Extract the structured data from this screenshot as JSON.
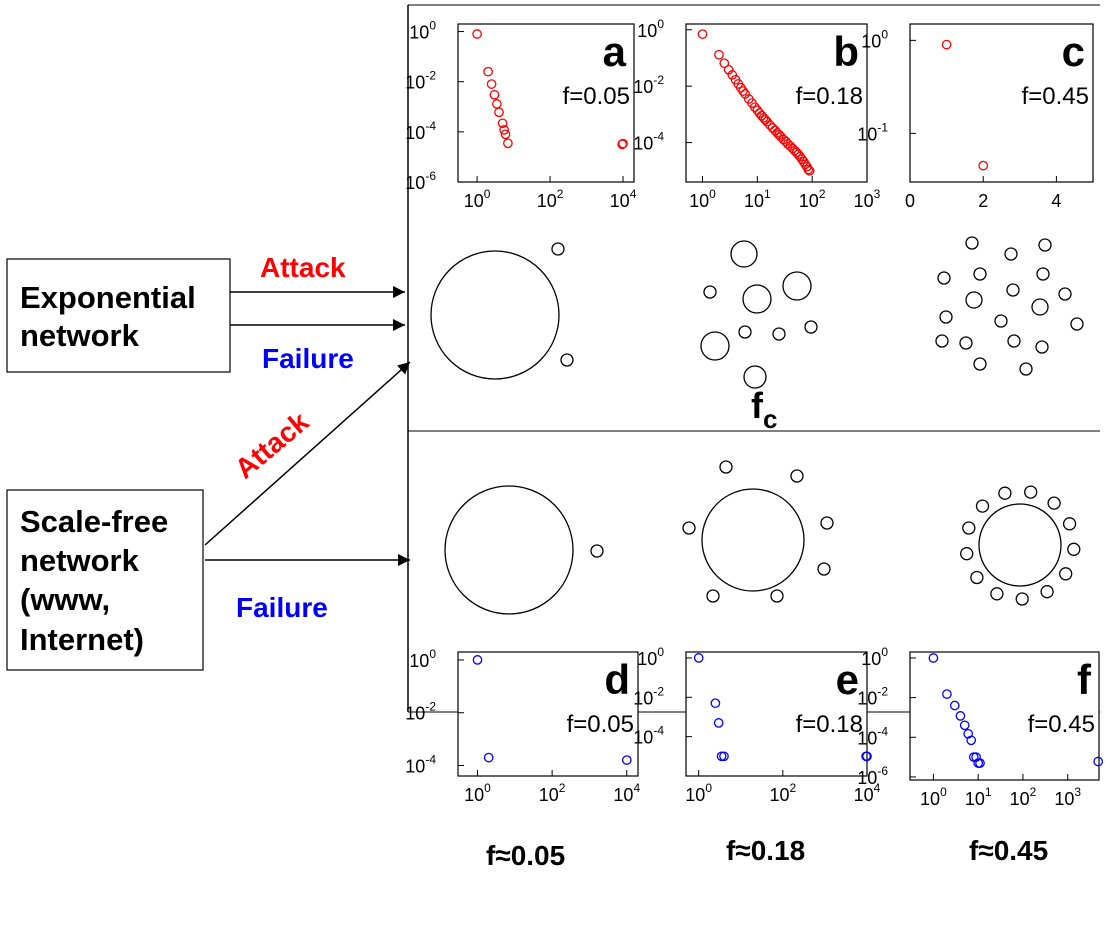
{
  "left_labels": {
    "exponential": [
      "Exponential",
      "network"
    ],
    "scale_free": [
      "Scale-free",
      "network",
      "(www,",
      "Internet)"
    ]
  },
  "arrow_labels": {
    "exp_attack": "Attack",
    "exp_failure": "Failure",
    "sf_attack": "Attack",
    "sf_failure": "Failure"
  },
  "colors": {
    "attack": "#ff0000",
    "failure": "#0000ff",
    "exp_markers": "#ff0000",
    "sf_markers": "#0000ff"
  },
  "critical_label": {
    "main": "f",
    "sub": "c"
  },
  "bottom_labels": [
    "f≈0.05",
    "f≈0.18",
    "f≈0.45"
  ],
  "chart_data": [
    {
      "panel": "a",
      "type": "scatter",
      "f_label": "f=0.05",
      "xscale": "log",
      "yscale": "log",
      "xlim": [
        0.3,
        20000
      ],
      "ylim": [
        1e-06,
        2
      ],
      "xticks": [
        1,
        100,
        10000
      ],
      "xtick_labels": [
        [
          "10",
          "0"
        ],
        [
          "10",
          "2"
        ],
        [
          "10",
          "4"
        ]
      ],
      "yticks": [
        1,
        0.01,
        0.0001,
        1e-06
      ],
      "ytick_labels": [
        [
          "10",
          "0"
        ],
        [
          "10",
          "-2"
        ],
        [
          "10",
          "-4"
        ],
        [
          "10",
          "-6"
        ]
      ],
      "marker_color": "#ff0000",
      "x": [
        1,
        2,
        2.5,
        3,
        3.5,
        4,
        5,
        5.5,
        6,
        7,
        9500,
        10000
      ],
      "y": [
        0.8,
        0.025,
        0.008,
        0.003,
        0.0013,
        0.0006,
        0.00022,
        0.00012,
        8e-05,
        3.5e-05,
        3.2e-05,
        3.4e-05
      ]
    },
    {
      "panel": "b",
      "type": "scatter",
      "f_label": "f=0.18",
      "xscale": "log",
      "yscale": "log",
      "xlim": [
        0.5,
        1000
      ],
      "ylim": [
        4e-06,
        1.6
      ],
      "xticks": [
        1,
        10,
        100,
        1000
      ],
      "xtick_labels": [
        [
          "10",
          "0"
        ],
        [
          "10",
          "1"
        ],
        [
          "10",
          "2"
        ],
        [
          "10",
          "3"
        ]
      ],
      "yticks": [
        1,
        0.01,
        0.0001
      ],
      "ytick_labels": [
        [
          "10",
          "0"
        ],
        [
          "10",
          "-2"
        ],
        [
          "10",
          "-4"
        ]
      ],
      "marker_color": "#ff0000",
      "x": [
        1,
        2,
        2.5,
        3,
        3.5,
        4,
        4.5,
        5,
        5.5,
        6,
        7,
        8,
        9,
        10,
        11,
        12,
        13,
        14,
        15,
        17,
        19,
        21,
        23,
        25,
        27,
        30,
        33,
        36,
        40,
        44,
        48,
        52,
        56,
        60,
        65,
        70,
        75,
        80,
        85,
        90
      ],
      "y": [
        0.7,
        0.13,
        0.065,
        0.038,
        0.025,
        0.017,
        0.012,
        0.0088,
        0.0067,
        0.0053,
        0.0035,
        0.0025,
        0.0018,
        0.0014,
        0.0011,
        0.0009,
        0.00075,
        0.00064,
        0.00055,
        0.00042,
        0.00033,
        0.00027,
        0.00022,
        0.00019,
        0.00016,
        0.00013,
        0.00011,
        9e-05,
        7.5e-05,
        6.2e-05,
        5.2e-05,
        4.5e-05,
        3.8e-05,
        3.2e-05,
        2.6e-05,
        2.1e-05,
        1.7e-05,
        1.4e-05,
        1.1e-05,
        1e-05
      ]
    },
    {
      "panel": "c",
      "type": "scatter",
      "f_label": "f=0.45",
      "xscale": "linear",
      "yscale": "log",
      "xlim": [
        0,
        5
      ],
      "ylim": [
        0.03,
        1.5
      ],
      "xticks": [
        0,
        2,
        4
      ],
      "xtick_labels": [
        [
          "0",
          ""
        ],
        [
          "2",
          ""
        ],
        [
          "4",
          ""
        ]
      ],
      "yticks": [
        1,
        0.1
      ],
      "ytick_labels": [
        [
          "10",
          "0"
        ],
        [
          "10",
          "-1"
        ]
      ],
      "marker_color": "#ff0000",
      "x": [
        1,
        2
      ],
      "y": [
        0.9,
        0.045
      ]
    },
    {
      "panel": "d",
      "type": "scatter",
      "f_label": "f=0.05",
      "xscale": "log",
      "yscale": "log",
      "xlim": [
        0.3,
        20000
      ],
      "ylim": [
        4e-05,
        2
      ],
      "xticks": [
        1,
        100,
        10000
      ],
      "xtick_labels": [
        [
          "10",
          "0"
        ],
        [
          "10",
          "2"
        ],
        [
          "10",
          "4"
        ]
      ],
      "yticks": [
        1,
        0.01,
        0.0001
      ],
      "ytick_labels": [
        [
          "10",
          "0"
        ],
        [
          "10",
          "-2"
        ],
        [
          "10",
          "-4"
        ]
      ],
      "marker_color": "#0000ff",
      "x": [
        1,
        2,
        10000
      ],
      "y": [
        1,
        0.0002,
        0.00016
      ]
    },
    {
      "panel": "e",
      "type": "scatter",
      "f_label": "f=0.18",
      "xscale": "log",
      "yscale": "log",
      "xlim": [
        0.5,
        10000
      ],
      "ylim": [
        1e-06,
        2
      ],
      "xticks": [
        1,
        100,
        10000
      ],
      "xtick_labels": [
        [
          "10",
          "0"
        ],
        [
          "10",
          "2"
        ],
        [
          "10",
          "4"
        ]
      ],
      "yticks": [
        1,
        0.01,
        0.0001
      ],
      "ytick_labels": [
        [
          "10",
          "0"
        ],
        [
          "10",
          "-2"
        ],
        [
          "10",
          "-4"
        ]
      ],
      "marker_color": "#0000ff",
      "x": [
        1,
        2.5,
        3,
        3.5,
        4,
        9500,
        10000
      ],
      "y": [
        1,
        0.005,
        0.0005,
        1e-05,
        1e-05,
        1e-05,
        1e-05
      ]
    },
    {
      "panel": "f",
      "type": "scatter",
      "f_label": "f=0.45",
      "xscale": "log",
      "yscale": "log",
      "xlim": [
        0.3,
        5000
      ],
      "ylim": [
        7e-07,
        2
      ],
      "xticks": [
        1,
        10,
        100,
        1000
      ],
      "xtick_labels": [
        [
          "10",
          "0"
        ],
        [
          "10",
          "1"
        ],
        [
          "10",
          "2"
        ],
        [
          "10",
          "3"
        ]
      ],
      "yticks": [
        1,
        0.01,
        0.0001,
        1e-06
      ],
      "ytick_labels": [
        [
          "10",
          "0"
        ],
        [
          "10",
          "-2"
        ],
        [
          "10",
          "-4"
        ],
        [
          "10",
          "-6"
        ]
      ],
      "marker_color": "#0000ff",
      "x": [
        1,
        2,
        3,
        4,
        5,
        6,
        7,
        8,
        9,
        10,
        11,
        4800
      ],
      "y": [
        1,
        0.015,
        0.004,
        0.0012,
        0.0004,
        0.00015,
        7e-05,
        1e-05,
        1e-05,
        5e-06,
        5e-06,
        6e-06
      ]
    }
  ]
}
